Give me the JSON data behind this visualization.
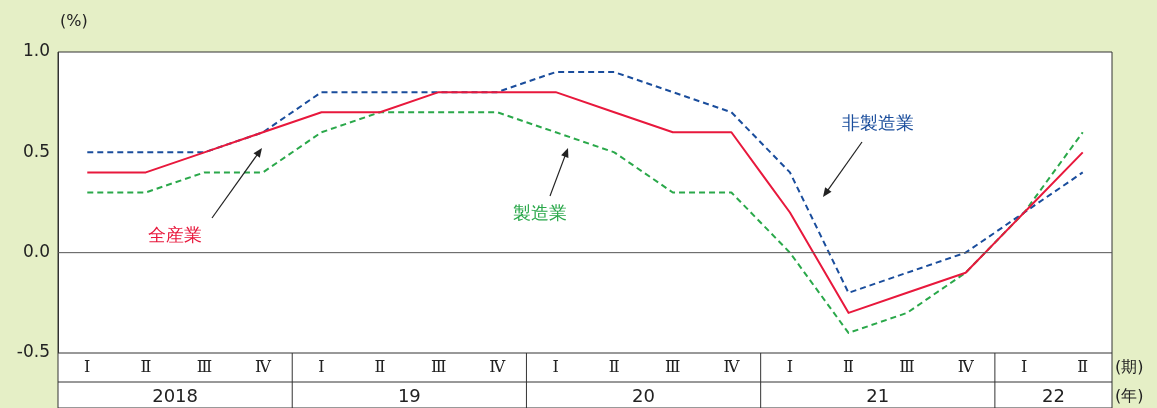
{
  "chart_data": {
    "type": "line",
    "ylabel": "(%)",
    "xlabel": "(期)",
    "categories": [
      "Ⅰ",
      "Ⅱ",
      "Ⅲ",
      "Ⅳ",
      "Ⅰ",
      "Ⅱ",
      "Ⅲ",
      "Ⅳ",
      "Ⅰ",
      "Ⅱ",
      "Ⅲ",
      "Ⅳ",
      "Ⅰ",
      "Ⅱ",
      "Ⅲ",
      "Ⅳ",
      "Ⅰ",
      "Ⅱ"
    ],
    "series": [
      {
        "name": "全産業",
        "color": "#e8183c",
        "line_style": "solid",
        "values": [
          0.4,
          0.4,
          0.5,
          0.6,
          0.7,
          0.7,
          0.8,
          0.8,
          0.8,
          0.7,
          0.6,
          0.6,
          0.2,
          -0.3,
          -0.2,
          -0.1,
          0.2,
          0.5
        ]
      },
      {
        "name": "非製造業",
        "color": "#1a4d9c",
        "line_style": "dashed",
        "values": [
          0.5,
          0.5,
          0.5,
          0.6,
          0.8,
          0.8,
          0.8,
          0.8,
          0.9,
          0.9,
          0.8,
          0.7,
          0.4,
          -0.2,
          -0.1,
          0.0,
          0.2,
          0.4
        ]
      },
      {
        "name": "製造業",
        "color": "#2aa84a",
        "line_style": "dashed",
        "values": [
          0.3,
          0.3,
          0.4,
          0.4,
          0.6,
          0.7,
          0.7,
          0.7,
          0.6,
          0.5,
          0.3,
          0.3,
          0.0,
          -0.4,
          -0.3,
          -0.1,
          0.2,
          0.6
        ]
      }
    ],
    "ylim": [
      -0.5,
      1.0
    ],
    "yticks": [
      {
        "value": -0.5,
        "label": "-0.5"
      },
      {
        "value": 0,
        "label": "0.0"
      },
      {
        "value": 0.5,
        "label": "0.5"
      },
      {
        "value": 1,
        "label": "1.0"
      }
    ],
    "ref_lines": [
      {
        "axis": "y",
        "value": 0,
        "color": "#555555"
      }
    ],
    "annotations": [
      "2018",
      "19",
      "20",
      "21",
      "22",
      "(年)"
    ],
    "grid": false,
    "legend": false,
    "marker": "none"
  }
}
